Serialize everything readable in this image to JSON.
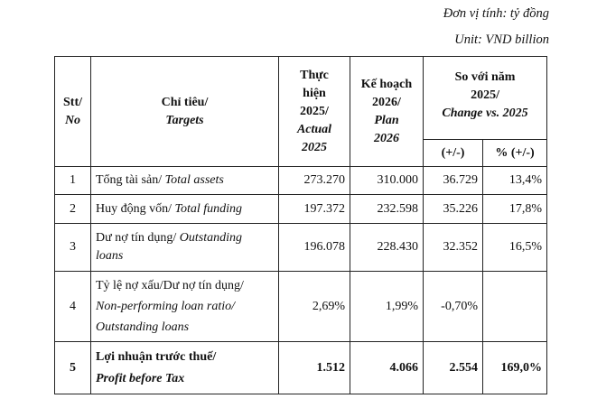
{
  "unit": {
    "vi": "Đơn vị tính: tỷ đồng",
    "en": "Unit: VND billion"
  },
  "header": {
    "stt": [
      "Stt/",
      "No"
    ],
    "target": [
      "Chỉ tiêu/",
      "Targets"
    ],
    "actual": [
      "Thực",
      "hiện",
      "2025/",
      "Actual",
      "2025"
    ],
    "plan": [
      "Kế hoạch",
      "2026/",
      "Plan",
      "2026"
    ],
    "compare": [
      "So với năm",
      "2025/",
      "Change vs. 2025"
    ],
    "diff": "(+/-)",
    "pct": "% (+/-)"
  },
  "rows": [
    {
      "no": "1",
      "vi": "Tổng tài sản/ ",
      "en": "Total assets",
      "actual": "273.270",
      "plan": "310.000",
      "diff": "36.729",
      "pct": "13,4%"
    },
    {
      "no": "2",
      "vi": "Huy động vốn/ ",
      "en": "Total funding",
      "actual": "197.372",
      "plan": "232.598",
      "diff": "35.226",
      "pct": "17,8%"
    },
    {
      "no": "3",
      "vi": "Dư nợ tín dụng/ ",
      "en1": "Outstanding",
      "en2": "loans",
      "actual": "196.078",
      "plan": "228.430",
      "diff": "32.352",
      "pct": "16,5%"
    },
    {
      "no": "4",
      "vi": "Tỷ lệ nợ xấu/Dư nợ tín dụng/",
      "en1": "Non-performing loan ratio/",
      "en2": "Outstanding loans",
      "actual": "2,69%",
      "plan": "1,99%",
      "diff": "-0,70%",
      "pct": ""
    },
    {
      "no": "5",
      "vi": "Lợi nhuận trước thuế/",
      "en": "Profit before Tax",
      "actual": "1.512",
      "plan": "4.066",
      "diff": "2.554",
      "pct": "169,0%"
    }
  ]
}
